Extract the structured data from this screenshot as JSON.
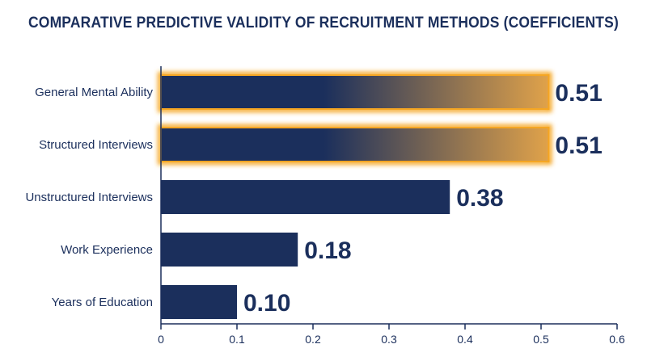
{
  "chart_data": {
    "type": "bar",
    "orientation": "horizontal",
    "title": "COMPARATIVE PREDICTIVE VALIDITY OF RECRUITMENT METHODS (COEFFICIENTS)",
    "categories": [
      "General Mental Ability",
      "Structured Interviews",
      "Unstructured Interviews",
      "Work Experience",
      "Years of Education"
    ],
    "values": [
      0.51,
      0.51,
      0.38,
      0.18,
      0.1
    ],
    "value_labels": [
      "0.51",
      "0.51",
      "0.38",
      "0.18",
      "0.10"
    ],
    "highlighted": [
      true,
      true,
      false,
      false,
      false
    ],
    "xlim": [
      0,
      0.6
    ],
    "xticks": [
      0,
      0.1,
      0.2,
      0.3,
      0.4,
      0.5,
      0.6
    ],
    "xtick_labels": [
      "0",
      "0.1",
      "0.2",
      "0.3",
      "0.4",
      "0.5",
      "0.6"
    ],
    "xlabel": "",
    "ylabel": "",
    "grid": false,
    "colors": {
      "bar": "#1b2f5c",
      "highlight_glow": "#f5a623",
      "highlight_fade": "#e0a24a",
      "text": "#1b2f5c",
      "axis": "#1b2f5c"
    }
  }
}
